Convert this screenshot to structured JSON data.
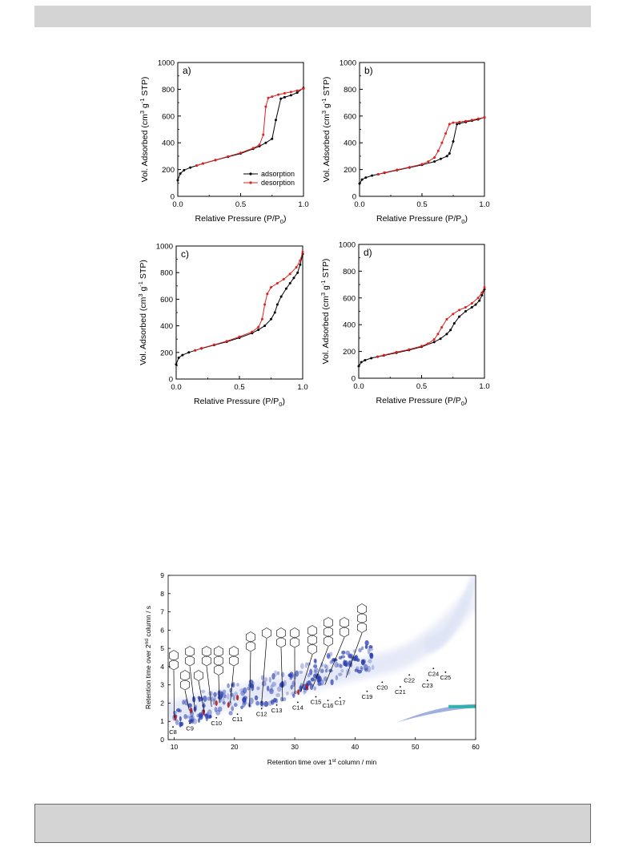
{
  "header_bar": {
    "color": "#d4d4d4"
  },
  "footer_box": {
    "color": "#d4d4d4"
  },
  "isotherms": {
    "x_label": "Relative Pressure (P/P",
    "x_label_sub": "0",
    "x_label_end": ")",
    "y_label_main": "Vol. Adsorbed (cm",
    "y_label_sup1": "3",
    "y_label_mid": " g",
    "y_label_sup2": "-1",
    "y_label_end": " STP)",
    "x_ticks": [
      "0.0",
      "0.5",
      "1.0"
    ],
    "y_ticks": [
      "0",
      "200",
      "400",
      "600",
      "800",
      "1000"
    ],
    "legend": [
      "adsorption",
      "desorption"
    ],
    "panel_labels": [
      "a)",
      "b)",
      "c)",
      "d)"
    ]
  },
  "gcxgc": {
    "x_label": "Retention time over 1",
    "x_label_sup": "st",
    "x_label_end": " column / min",
    "y_label": "Retention time over 2",
    "y_label_sup": "nd",
    "y_label_end": " column / s",
    "x_ticks": [
      "10",
      "20",
      "30",
      "40",
      "50",
      "60"
    ],
    "y_ticks": [
      "0",
      "1",
      "2",
      "3",
      "4",
      "5",
      "6",
      "7",
      "8",
      "9"
    ],
    "carbon_labels": [
      "C8",
      "C9",
      "C10",
      "C11",
      "C12",
      "C13",
      "C14",
      "C15",
      "C16",
      "C17",
      "C19",
      "C20",
      "C21",
      "C22",
      "C23",
      "C24",
      "C25"
    ]
  },
  "chart_data": [
    {
      "type": "line",
      "panel": "a)",
      "xlim": [
        0,
        1
      ],
      "ylim": [
        0,
        1000
      ],
      "xlabel": "Relative Pressure (P/P0)",
      "ylabel": "Vol. Adsorbed (cm3 g-1 STP)",
      "series": [
        {
          "name": "adsorption",
          "color": "#000000",
          "x": [
            0.0,
            0.02,
            0.05,
            0.1,
            0.15,
            0.2,
            0.3,
            0.4,
            0.5,
            0.6,
            0.65,
            0.7,
            0.75,
            0.78,
            0.82,
            0.85,
            0.9,
            0.95,
            1.0
          ],
          "y": [
            120,
            170,
            195,
            215,
            230,
            245,
            270,
            295,
            320,
            355,
            375,
            400,
            430,
            570,
            730,
            740,
            755,
            775,
            810
          ]
        },
        {
          "name": "desorption",
          "color": "#e02020",
          "x": [
            0.15,
            0.2,
            0.3,
            0.4,
            0.5,
            0.6,
            0.65,
            0.68,
            0.7,
            0.72,
            0.75,
            0.8,
            0.85,
            0.9,
            0.95,
            1.0
          ],
          "y": [
            230,
            245,
            272,
            298,
            325,
            360,
            385,
            460,
            670,
            735,
            745,
            760,
            770,
            780,
            790,
            805
          ]
        }
      ],
      "legend_position": "bottom-right"
    },
    {
      "type": "line",
      "panel": "b)",
      "xlim": [
        0,
        1
      ],
      "ylim": [
        0,
        1000
      ],
      "series": [
        {
          "name": "adsorption",
          "color": "#000000",
          "x": [
            0.0,
            0.02,
            0.05,
            0.1,
            0.15,
            0.2,
            0.3,
            0.4,
            0.5,
            0.6,
            0.65,
            0.7,
            0.72,
            0.75,
            0.78,
            0.8,
            0.85,
            0.9,
            0.95,
            1.0
          ],
          "y": [
            95,
            125,
            140,
            155,
            165,
            175,
            195,
            215,
            235,
            260,
            280,
            300,
            320,
            410,
            540,
            545,
            555,
            565,
            575,
            590
          ]
        },
        {
          "name": "desorption",
          "color": "#e02020",
          "x": [
            0.15,
            0.2,
            0.3,
            0.4,
            0.5,
            0.55,
            0.6,
            0.63,
            0.66,
            0.69,
            0.72,
            0.75,
            0.8,
            0.85,
            0.9,
            0.95,
            1.0
          ],
          "y": [
            165,
            178,
            198,
            218,
            240,
            260,
            290,
            340,
            400,
            470,
            540,
            550,
            555,
            562,
            570,
            580,
            590
          ]
        }
      ]
    },
    {
      "type": "line",
      "panel": "c)",
      "xlim": [
        0,
        1
      ],
      "ylim": [
        0,
        1000
      ],
      "series": [
        {
          "name": "adsorption",
          "color": "#000000",
          "x": [
            0.0,
            0.02,
            0.05,
            0.1,
            0.15,
            0.2,
            0.3,
            0.4,
            0.5,
            0.6,
            0.65,
            0.7,
            0.75,
            0.78,
            0.8,
            0.83,
            0.87,
            0.9,
            0.93,
            0.96,
            0.98,
            1.0
          ],
          "y": [
            110,
            160,
            180,
            200,
            215,
            230,
            255,
            280,
            310,
            345,
            370,
            400,
            450,
            500,
            560,
            620,
            680,
            720,
            760,
            800,
            860,
            940
          ]
        },
        {
          "name": "desorption",
          "color": "#e02020",
          "x": [
            0.15,
            0.2,
            0.3,
            0.4,
            0.5,
            0.6,
            0.65,
            0.68,
            0.7,
            0.72,
            0.75,
            0.8,
            0.85,
            0.9,
            0.95,
            0.98,
            1.0
          ],
          "y": [
            215,
            232,
            258,
            285,
            318,
            355,
            390,
            450,
            560,
            640,
            690,
            720,
            750,
            790,
            840,
            890,
            955
          ]
        }
      ]
    },
    {
      "type": "line",
      "panel": "d)",
      "xlim": [
        0,
        1
      ],
      "ylim": [
        0,
        1000
      ],
      "series": [
        {
          "name": "adsorption",
          "color": "#000000",
          "x": [
            0.0,
            0.02,
            0.05,
            0.1,
            0.15,
            0.2,
            0.3,
            0.4,
            0.5,
            0.6,
            0.65,
            0.7,
            0.73,
            0.76,
            0.8,
            0.85,
            0.9,
            0.93,
            0.96,
            0.98,
            1.0
          ],
          "y": [
            90,
            120,
            135,
            150,
            160,
            170,
            190,
            210,
            235,
            270,
            295,
            330,
            360,
            410,
            460,
            500,
            530,
            550,
            580,
            620,
            665
          ]
        },
        {
          "name": "desorption",
          "color": "#e02020",
          "x": [
            0.15,
            0.2,
            0.3,
            0.4,
            0.5,
            0.55,
            0.6,
            0.63,
            0.66,
            0.7,
            0.75,
            0.8,
            0.85,
            0.9,
            0.95,
            0.98,
            1.0
          ],
          "y": [
            162,
            173,
            195,
            215,
            240,
            258,
            290,
            330,
            380,
            440,
            480,
            510,
            530,
            560,
            600,
            640,
            680
          ]
        }
      ]
    },
    {
      "type": "heatmap",
      "xlim": [
        9,
        60
      ],
      "ylim": [
        0,
        9
      ],
      "xlabel": "Retention time over 1st column / min",
      "ylabel": "Retention time over 2nd column / s",
      "carbon_markers": [
        {
          "label": "C8",
          "x": 9.8,
          "y": 0.3
        },
        {
          "label": "C9",
          "x": 12.6,
          "y": 0.5
        },
        {
          "label": "C10",
          "x": 17.0,
          "y": 0.8
        },
        {
          "label": "C11",
          "x": 20.5,
          "y": 1.0
        },
        {
          "label": "C12",
          "x": 24.5,
          "y": 1.3
        },
        {
          "label": "C13",
          "x": 27.0,
          "y": 1.5
        },
        {
          "label": "C14",
          "x": 30.5,
          "y": 1.65
        },
        {
          "label": "C15",
          "x": 33.5,
          "y": 1.95
        },
        {
          "label": "C16",
          "x": 35.5,
          "y": 1.75
        },
        {
          "label": "C17",
          "x": 37.5,
          "y": 1.9
        },
        {
          "label": "C19",
          "x": 42.0,
          "y": 2.25
        },
        {
          "label": "C20",
          "x": 44.5,
          "y": 2.75
        },
        {
          "label": "C21",
          "x": 47.5,
          "y": 2.5
        },
        {
          "label": "C22",
          "x": 49.0,
          "y": 3.15
        },
        {
          "label": "C23",
          "x": 52.0,
          "y": 2.85
        },
        {
          "label": "C24",
          "x": 53.0,
          "y": 3.5
        },
        {
          "label": "C25",
          "x": 55.0,
          "y": 3.3
        }
      ],
      "colors": {
        "low": "#dfe4f5",
        "mid": "#2a3fb0",
        "high": "#b01010",
        "bleed": "#22b0a8"
      }
    }
  ]
}
